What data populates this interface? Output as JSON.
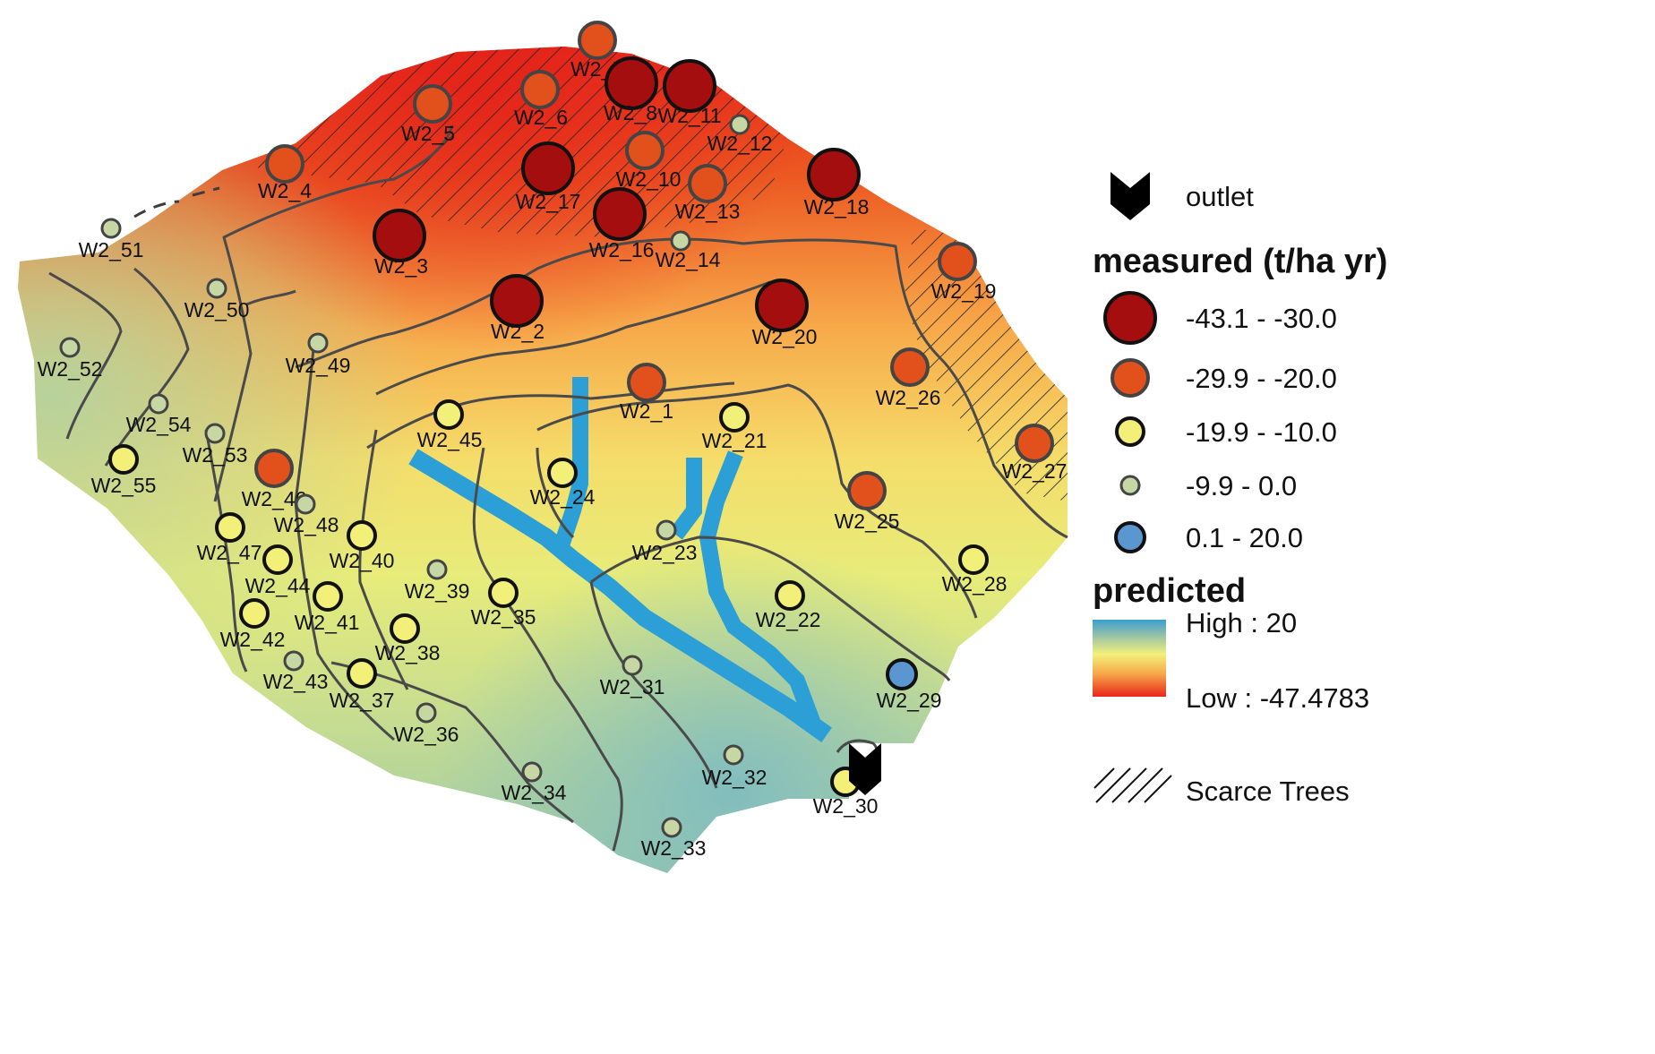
{
  "legend": {
    "outlet_label": "outlet",
    "measured_title": "measured (t/ha yr)",
    "classes": [
      {
        "label": "-43.1 - -30.0",
        "fill": "#a50e0e"
      },
      {
        "label": "-29.9 - -20.0",
        "fill": "#e2501c"
      },
      {
        "label": "-19.9 - -10.0",
        "fill": "#f3f07a"
      },
      {
        "label": "-9.9 - 0.0",
        "fill": "#c7d7a3"
      },
      {
        "label": "0.1 - 20.0",
        "fill": "#5a96d0"
      }
    ],
    "predicted_title": "predicted",
    "high_label": "High : 20",
    "low_label": "Low : -47.4783",
    "hatch_label": "Scarce Trees"
  },
  "colors": {
    "high": "#2b9fd6",
    "mid": "#f3f07a",
    "low": "#e8271b",
    "contour": "#4a4a4a",
    "outline": "#3d3d3d"
  },
  "points": [
    {
      "id": "W2_1",
      "cls": 1
    },
    {
      "id": "W2_2",
      "cls": 0
    },
    {
      "id": "W2_3",
      "cls": 0
    },
    {
      "id": "W2_4",
      "cls": 1
    },
    {
      "id": "W2_5",
      "cls": 1
    },
    {
      "id": "W2_6",
      "cls": 1
    },
    {
      "id": "W2_7",
      "cls": 1
    },
    {
      "id": "W2_8",
      "cls": 0
    },
    {
      "id": "W2_10",
      "cls": 1
    },
    {
      "id": "W2_11",
      "cls": 0
    },
    {
      "id": "W2_12",
      "cls": 3
    },
    {
      "id": "W2_13",
      "cls": 1
    },
    {
      "id": "W2_14",
      "cls": 3
    },
    {
      "id": "W2_16",
      "cls": 0
    },
    {
      "id": "W2_17",
      "cls": 0
    },
    {
      "id": "W2_18",
      "cls": 0
    },
    {
      "id": "W2_19",
      "cls": 1
    },
    {
      "id": "W2_20",
      "cls": 0
    },
    {
      "id": "W2_21",
      "cls": 2
    },
    {
      "id": "W2_22",
      "cls": 2
    },
    {
      "id": "W2_23",
      "cls": 3
    },
    {
      "id": "W2_24",
      "cls": 2
    },
    {
      "id": "W2_25",
      "cls": 1
    },
    {
      "id": "W2_26",
      "cls": 1
    },
    {
      "id": "W2_27",
      "cls": 1
    },
    {
      "id": "W2_28",
      "cls": 2
    },
    {
      "id": "W2_29",
      "cls": 4
    },
    {
      "id": "W2_30",
      "cls": 2
    },
    {
      "id": "W2_31",
      "cls": 3
    },
    {
      "id": "W2_32",
      "cls": 3
    },
    {
      "id": "W2_33",
      "cls": 3
    },
    {
      "id": "W2_34",
      "cls": 3
    },
    {
      "id": "W2_35",
      "cls": 2
    },
    {
      "id": "W2_36",
      "cls": 3
    },
    {
      "id": "W2_37",
      "cls": 2
    },
    {
      "id": "W2_38",
      "cls": 2
    },
    {
      "id": "W2_39",
      "cls": 3
    },
    {
      "id": "W2_40",
      "cls": 2
    },
    {
      "id": "W2_41",
      "cls": 2
    },
    {
      "id": "W2_42",
      "cls": 2
    },
    {
      "id": "W2_43",
      "cls": 3
    },
    {
      "id": "W2_44",
      "cls": 2
    },
    {
      "id": "W2_45",
      "cls": 2
    },
    {
      "id": "W2_46",
      "cls": 1
    },
    {
      "id": "W2_47",
      "cls": 2
    },
    {
      "id": "W2_48",
      "cls": 3
    },
    {
      "id": "W2_49",
      "cls": 3
    },
    {
      "id": "W2_50",
      "cls": 3
    },
    {
      "id": "W2_51",
      "cls": 3
    },
    {
      "id": "W2_52",
      "cls": 3
    },
    {
      "id": "W2_53",
      "cls": 3
    },
    {
      "id": "W2_54",
      "cls": 3
    },
    {
      "id": "W2_55",
      "cls": 2
    }
  ]
}
